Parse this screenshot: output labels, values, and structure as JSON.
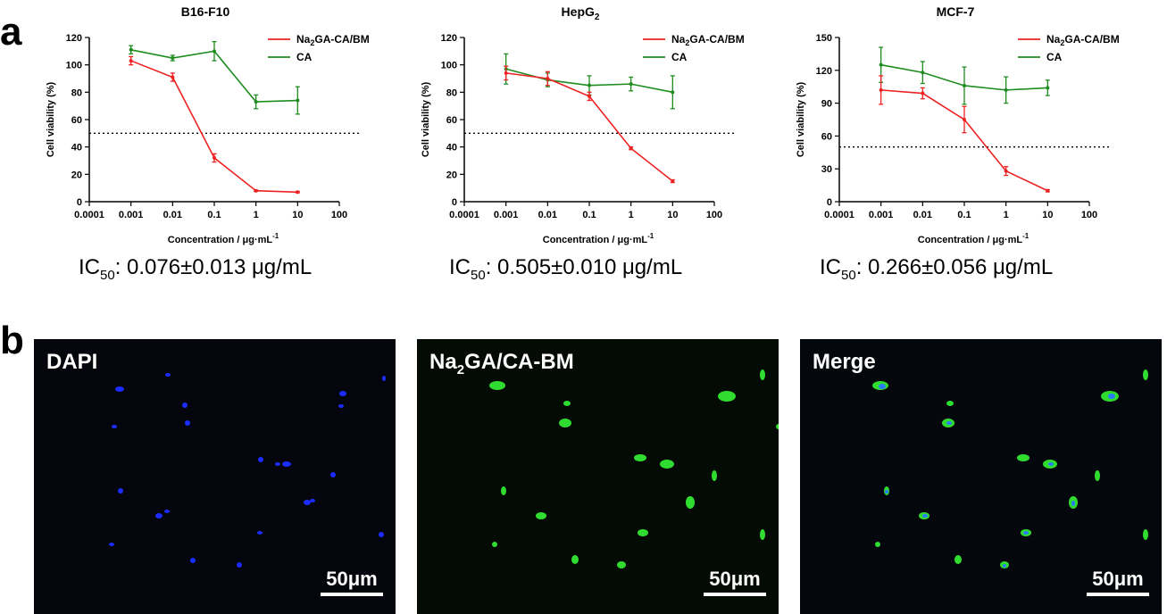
{
  "panel_labels": {
    "a": "a",
    "b": "b"
  },
  "colors": {
    "na2ga": "#ee2222",
    "ca": "#1e8c1e",
    "threshold": "#000000"
  },
  "chart_data": [
    {
      "type": "line",
      "title": "B16-F10",
      "xlabel": "Concentration / μg·mL",
      "xlabel_sup": "-1",
      "ylabel": "Cell viability (%)",
      "x_scale": "log",
      "x_ticks": [
        "0.0001",
        "0.001",
        "0.01",
        "0.1",
        "1",
        "10",
        "100"
      ],
      "xlim": [
        0.0001,
        100
      ],
      "ylim": [
        0,
        120
      ],
      "y_ticks": [
        0,
        20,
        40,
        60,
        80,
        100,
        120
      ],
      "threshold": 50,
      "legend_position": "top-right",
      "series": [
        {
          "name": "Na2GA-CA/BM",
          "legend_base": "Na",
          "legend_sub": "2",
          "legend_rest": "GA-CA/BM",
          "color": "#ee2222",
          "x": [
            0.001,
            0.01,
            0.1,
            1,
            10
          ],
          "y": [
            103,
            91,
            32,
            8,
            7
          ],
          "err": [
            3,
            3,
            3,
            0.5,
            0.5
          ]
        },
        {
          "name": "CA",
          "legend_base": "CA",
          "legend_sub": "",
          "legend_rest": "",
          "color": "#1e8c1e",
          "x": [
            0.001,
            0.01,
            0.1,
            1,
            10
          ],
          "y": [
            111,
            105,
            110,
            73,
            74
          ],
          "err": [
            3,
            2,
            7,
            5,
            10
          ]
        }
      ],
      "ic50": {
        "prefix": "IC",
        "sub": "50",
        "value": ": 0.076±0.013 μg/mL"
      }
    },
    {
      "type": "line",
      "title_base": "HepG",
      "title_sub": "2",
      "xlabel": "Concentration / μg·mL",
      "xlabel_sup": "-1",
      "ylabel": "Cell viability (%)",
      "x_scale": "log",
      "x_ticks": [
        "0.0001",
        "0.001",
        "0.01",
        "0.1",
        "1",
        "10",
        "100"
      ],
      "xlim": [
        0.0001,
        100
      ],
      "ylim": [
        0,
        120
      ],
      "y_ticks": [
        0,
        20,
        40,
        60,
        80,
        100,
        120
      ],
      "threshold": 50,
      "legend_position": "top-right",
      "series": [
        {
          "name": "Na2GA-CA/BM",
          "legend_base": "Na",
          "legend_sub": "2",
          "legend_rest": "GA-CA/BM",
          "color": "#ee2222",
          "x": [
            0.001,
            0.01,
            0.1,
            1,
            10
          ],
          "y": [
            94,
            90,
            77,
            39,
            15
          ],
          "err": [
            5,
            5,
            3,
            1,
            1
          ]
        },
        {
          "name": "CA",
          "legend_base": "CA",
          "legend_sub": "",
          "legend_rest": "",
          "color": "#1e8c1e",
          "x": [
            0.001,
            0.01,
            0.1,
            1,
            10
          ],
          "y": [
            97,
            89,
            85,
            86,
            80
          ],
          "err": [
            11,
            5,
            7,
            5,
            12
          ]
        }
      ],
      "ic50": {
        "prefix": "IC",
        "sub": "50",
        "value": ": 0.505±0.010 μg/mL"
      }
    },
    {
      "type": "line",
      "title": "MCF-7",
      "xlabel": "Concentration / μg·mL",
      "xlabel_sup": "-1",
      "ylabel": "Cell viability (%)",
      "x_scale": "log",
      "x_ticks": [
        "0.0001",
        "0.001",
        "0.01",
        "0.1",
        "1",
        "10",
        "100"
      ],
      "xlim": [
        0.0001,
        100
      ],
      "ylim": [
        0,
        150
      ],
      "y_ticks": [
        0,
        30,
        60,
        90,
        120,
        150
      ],
      "threshold": 50,
      "legend_position": "top-right",
      "series": [
        {
          "name": "Na2GA-CA/BM",
          "legend_base": "Na",
          "legend_sub": "2",
          "legend_rest": "GA-CA/BM",
          "color": "#ee2222",
          "x": [
            0.001,
            0.01,
            0.1,
            1,
            10
          ],
          "y": [
            102,
            99,
            75,
            28,
            10
          ],
          "err": [
            13,
            5,
            12,
            4,
            1
          ]
        },
        {
          "name": "CA",
          "legend_base": "CA",
          "legend_sub": "",
          "legend_rest": "",
          "color": "#1e8c1e",
          "x": [
            0.001,
            0.01,
            0.1,
            1,
            10
          ],
          "y": [
            125,
            118,
            106,
            102,
            104
          ],
          "err": [
            16,
            10,
            17,
            12,
            7
          ]
        }
      ],
      "ic50": {
        "prefix": "IC",
        "sub": "50",
        "value": ": 0.266±0.056 μg/mL"
      }
    }
  ],
  "micrographs": [
    {
      "label_base": "DAPI",
      "label_sub": "",
      "label_rest": "",
      "scale": "50μm",
      "channel": "blue"
    },
    {
      "label_base": "Na",
      "label_sub": "2",
      "label_rest": "GA/CA-BM",
      "scale": "50μm",
      "channel": "green"
    },
    {
      "label_base": "Merge",
      "label_sub": "",
      "label_rest": "",
      "scale": "50μm",
      "channel": "merge"
    }
  ]
}
